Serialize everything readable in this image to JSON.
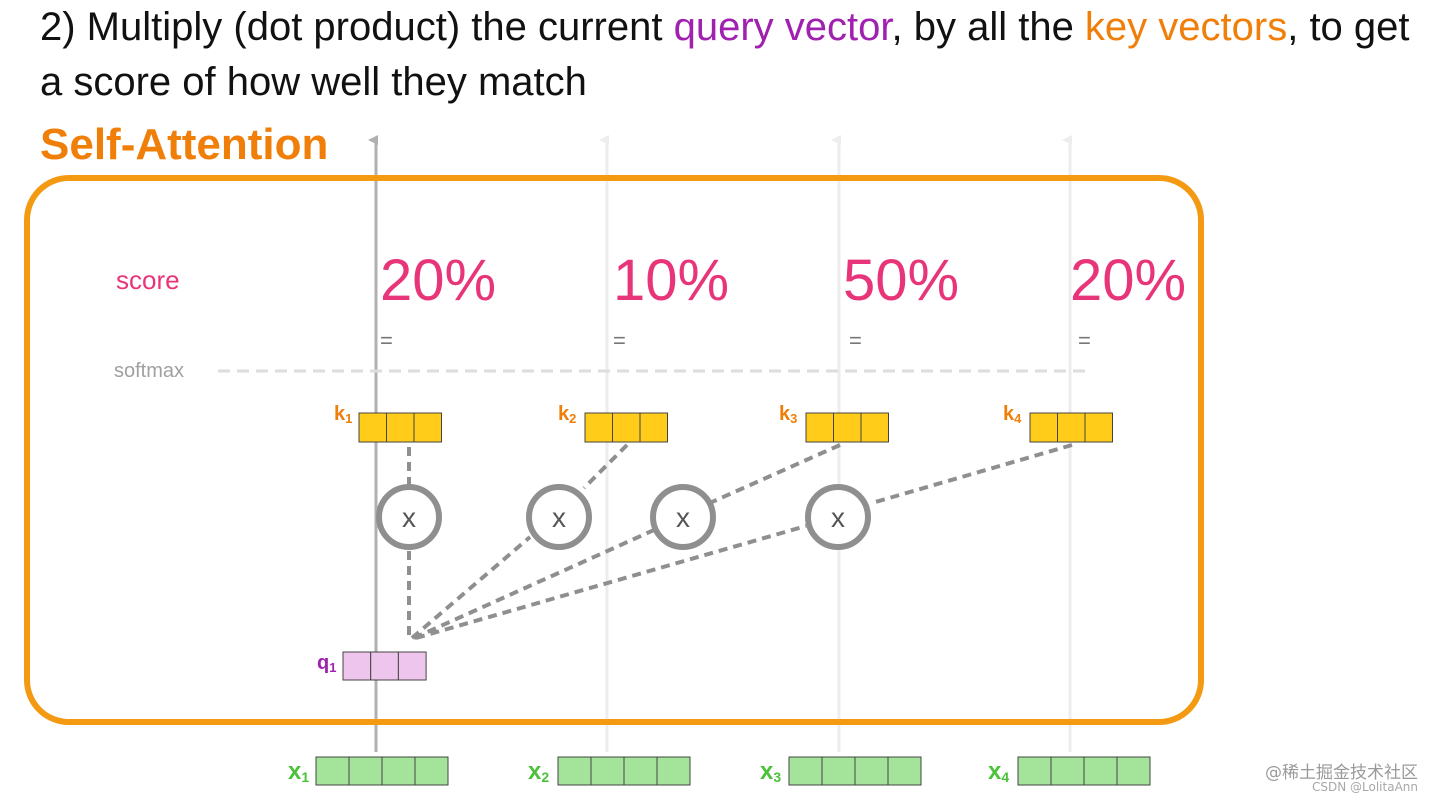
{
  "heading": {
    "part1": "2) Multiply (dot product) the current ",
    "query_phrase": "query vector",
    "part2": ", by all the ",
    "key_phrase": "key vectors",
    "part3": ", to get a score of how well they match"
  },
  "section_title": "Self-Attention",
  "score_label": "score",
  "softmax_label": "softmax",
  "equals_sign": "=",
  "multiply_symbol": "x",
  "scores": [
    "20%",
    "10%",
    "50%",
    "20%"
  ],
  "keys": [
    {
      "letter": "k",
      "sub": "1"
    },
    {
      "letter": "k",
      "sub": "2"
    },
    {
      "letter": "k",
      "sub": "3"
    },
    {
      "letter": "k",
      "sub": "4"
    }
  ],
  "query": {
    "letter": "q",
    "sub": "1"
  },
  "inputs": [
    {
      "letter": "x",
      "sub": "1"
    },
    {
      "letter": "x",
      "sub": "2"
    },
    {
      "letter": "x",
      "sub": "3"
    },
    {
      "letter": "x",
      "sub": "4"
    }
  ],
  "watermark": {
    "line1": "@稀土掘金技术社区",
    "line2": "CSDN @LolitaAnn"
  },
  "colors": {
    "query": "#a020b0",
    "key": "#f07f0a",
    "score": "#e8357a",
    "key_cell": "#ffcc1a",
    "query_cell": "#eec5ec",
    "input_cell": "#a3e49a",
    "input_label": "#4cc23a",
    "frame": "#f39a12",
    "dashed": "#8f8f8f"
  }
}
